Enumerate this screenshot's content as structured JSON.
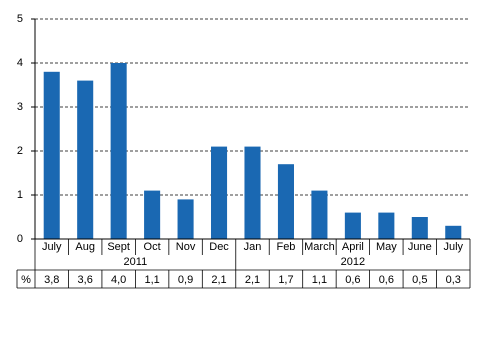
{
  "chart_data": {
    "type": "bar",
    "categories": [
      "July",
      "Aug",
      "Sept",
      "Oct",
      "Nov",
      "Dec",
      "Jan",
      "Feb",
      "March",
      "April",
      "May",
      "June",
      "July"
    ],
    "groups": [
      {
        "label": "2011",
        "size": 6
      },
      {
        "label": "2012",
        "size": 7
      }
    ],
    "values": [
      3.8,
      3.6,
      4.0,
      1.1,
      0.9,
      2.1,
      2.1,
      1.7,
      1.1,
      0.6,
      0.6,
      0.5,
      0.3
    ],
    "value_labels": [
      "3,8",
      "3,6",
      "4,0",
      "1,1",
      "0,9",
      "2,1",
      "2,1",
      "1,7",
      "1,1",
      "0,6",
      "0,6",
      "0,5",
      "0,3"
    ],
    "table_label": "%",
    "color": "#1a68b2",
    "ylim": [
      0,
      5
    ],
    "yticks": [
      0,
      1,
      2,
      3,
      4,
      5
    ],
    "grid": true
  }
}
